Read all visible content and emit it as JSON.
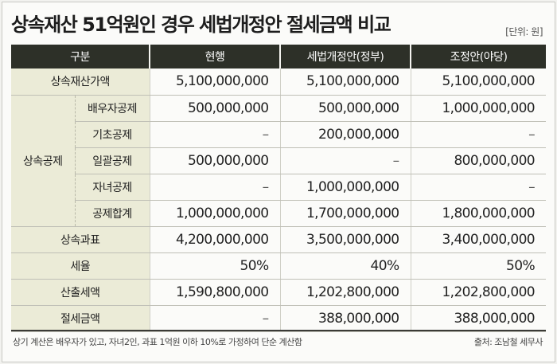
{
  "title": "상속재산 51억원인 경우 세법개정안 절세금액 비교",
  "unit": "[단위: 원]",
  "headers": [
    "구분",
    "현행",
    "세법개정안(정부)",
    "조정안(야당)"
  ],
  "rows": {
    "estate": {
      "label": "상속재산가액",
      "values": [
        "5,100,000,000",
        "5,100,000,000",
        "5,100,000,000"
      ]
    },
    "deduction_group": "상속공제",
    "spouse": {
      "label": "배우자공제",
      "values": [
        "500,000,000",
        "500,000,000",
        "1,000,000,000"
      ]
    },
    "basic": {
      "label": "기초공제",
      "values": [
        "–",
        "200,000,000",
        "–"
      ]
    },
    "lump": {
      "label": "일괄공제",
      "values": [
        "500,000,000",
        "–",
        "800,000,000"
      ]
    },
    "children": {
      "label": "자녀공제",
      "values": [
        "–",
        "1,000,000,000",
        "–"
      ]
    },
    "total": {
      "label": "공제합계",
      "values": [
        "1,000,000,000",
        "1,700,000,000",
        "1,800,000,000"
      ]
    },
    "taxable": {
      "label": "상속과표",
      "values": [
        "4,200,000,000",
        "3,500,000,000",
        "3,400,000,000"
      ]
    },
    "rate": {
      "label": "세율",
      "values": [
        "50%",
        "40%",
        "50%"
      ]
    },
    "computed": {
      "label": "산출세액",
      "values": [
        "1,590,800,000",
        "1,202,800,000",
        "1,202,800,000"
      ]
    },
    "saving": {
      "label": "절세금액",
      "values": [
        "–",
        "388,000,000",
        "388,000,000"
      ]
    }
  },
  "note": "상기 계산은 배우자가 있고, 자녀2인, 과표 1억원 이하 10%로 가정하여 단순 계산함",
  "source": "출처: 조남철 세무사"
}
